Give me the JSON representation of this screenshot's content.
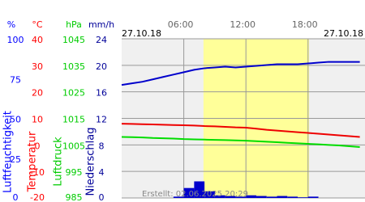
{
  "chart_data": {
    "type": "line",
    "dates": [
      "27.10.18",
      "27.10.18"
    ],
    "created": "Erstellt: 02.06.2025 20:29",
    "xlim": [
      0,
      23.5
    ],
    "xticks": [
      {
        "value": 6,
        "label": "06:00"
      },
      {
        "value": 12,
        "label": "12:00"
      },
      {
        "value": 18,
        "label": "18:00"
      }
    ],
    "daylight": [
      7.9,
      18.1
    ],
    "x": [
      0,
      1,
      2,
      3,
      4,
      5,
      6,
      7,
      8,
      9,
      10,
      11,
      12,
      13,
      14,
      15,
      16,
      17,
      18,
      19,
      20,
      21,
      22,
      23
    ],
    "axes": [
      {
        "unit": "%",
        "name": "Luftfeuchtigkeit",
        "color": "#0000ff",
        "ylim": [
          0,
          100
        ],
        "yticks": [
          100,
          75,
          50,
          25,
          0
        ]
      },
      {
        "unit": "°C",
        "name": "Temperatur",
        "color": "#ff0000",
        "ylim": [
          -20,
          40
        ],
        "yticks": [
          40,
          30,
          20,
          10,
          0,
          -10,
          -20
        ]
      },
      {
        "unit": "hPa",
        "name": "Luftdruck",
        "color": "#00cc00",
        "ylim": [
          985,
          1045
        ],
        "yticks": [
          1045,
          1035,
          1025,
          1015,
          1005,
          995,
          985
        ]
      },
      {
        "unit": "mm/h",
        "name": "Niederschlag",
        "color": "#000099",
        "ylim": [
          0,
          24
        ],
        "yticks": [
          24,
          20,
          16,
          12,
          8,
          4,
          0
        ]
      }
    ],
    "series": [
      {
        "axis": 0,
        "kind": "line",
        "color": "#0000cc",
        "values": [
          71,
          72,
          73,
          74.5,
          76,
          77.5,
          79,
          80.5,
          81.5,
          82,
          82.5,
          82,
          82.5,
          83,
          83.5,
          84,
          84,
          84,
          84.5,
          85,
          85.5,
          85.5,
          85.5,
          85.5
        ]
      },
      {
        "axis": 1,
        "kind": "line",
        "color": "#ee0000",
        "values": [
          8,
          7.9,
          7.8,
          7.7,
          7.6,
          7.5,
          7.4,
          7.3,
          7.1,
          7,
          6.8,
          6.6,
          6.5,
          6.1,
          5.7,
          5.4,
          5.1,
          4.8,
          4.5,
          4.2,
          3.9,
          3.6,
          3.3,
          3
        ]
      },
      {
        "axis": 2,
        "kind": "line",
        "color": "#00dd00",
        "values": [
          1008,
          1007.9,
          1007.8,
          1007.6,
          1007.5,
          1007.4,
          1007.2,
          1007.1,
          1007,
          1006.9,
          1006.8,
          1006.7,
          1006.6,
          1006.4,
          1006.2,
          1006,
          1005.8,
          1005.6,
          1005.4,
          1005.2,
          1005,
          1004.8,
          1004.5,
          1004.2
        ]
      },
      {
        "axis": 3,
        "kind": "bar",
        "color": "#0000cc",
        "values": [
          0,
          0,
          0,
          0,
          0,
          0.2,
          1.5,
          2.5,
          1,
          0.4,
          0.3,
          0.2,
          0.4,
          0.3,
          0.2,
          0.3,
          0.2,
          0.1,
          0.2,
          0,
          0,
          0,
          0,
          0
        ]
      }
    ]
  }
}
